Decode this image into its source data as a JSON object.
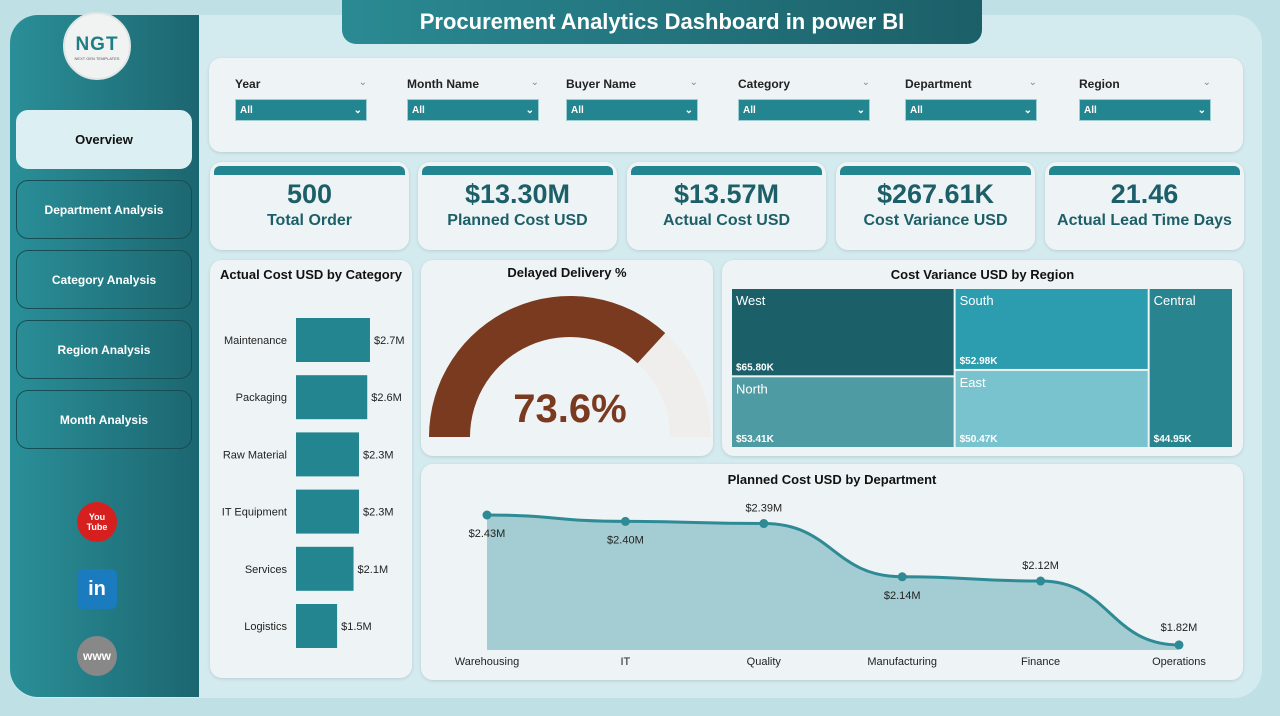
{
  "title": "Procurement Analytics Dashboard in power BI",
  "logo": {
    "text": "NGT",
    "sub": "NEXT GEN TEMPLATES"
  },
  "nav": [
    {
      "label": "Overview",
      "active": true
    },
    {
      "label": "Department Analysis"
    },
    {
      "label": "Category Analysis"
    },
    {
      "label": "Region Analysis"
    },
    {
      "label": "Month Analysis"
    }
  ],
  "social": [
    {
      "icon": "youtube-icon",
      "label": "You Tube",
      "color": "#d62020"
    },
    {
      "icon": "linkedin-icon",
      "label": "in",
      "color": "#1a7bbf"
    },
    {
      "icon": "globe-icon",
      "label": "www",
      "color": "#888888"
    }
  ],
  "filters": [
    {
      "label": "Year",
      "value": "All"
    },
    {
      "label": "Month Name",
      "value": "All"
    },
    {
      "label": "Buyer Name",
      "value": "All"
    },
    {
      "label": "Category",
      "value": "All"
    },
    {
      "label": "Department",
      "value": "All"
    },
    {
      "label": "Region",
      "value": "All"
    }
  ],
  "kpis": [
    {
      "value": "500",
      "label": "Total Order"
    },
    {
      "value": "$13.30M",
      "label": "Planned Cost USD"
    },
    {
      "value": "$13.57M",
      "label": "Actual Cost USD"
    },
    {
      "value": "$267.61K",
      "label": "Cost Variance USD"
    },
    {
      "value": "21.46",
      "label": "Actual Lead Time Days"
    }
  ],
  "colors": {
    "accent": "#238590",
    "gauge": "#7a3a1f"
  },
  "chart_data": [
    {
      "type": "bar",
      "orientation": "horizontal",
      "title": "Actual Cost USD by Category",
      "categories": [
        "Maintenance",
        "Packaging",
        "Raw Material",
        "IT Equipment",
        "Services",
        "Logistics"
      ],
      "values": [
        2.7,
        2.6,
        2.3,
        2.3,
        2.1,
        1.5
      ],
      "labels": [
        "$2.7M",
        "$2.6M",
        "$2.3M",
        "$2.3M",
        "$2.1M",
        "$1.5M"
      ]
    },
    {
      "type": "gauge",
      "title": "Delayed Delivery %",
      "value": 73.6,
      "label": "73.6%",
      "range": [
        0,
        100
      ]
    },
    {
      "type": "treemap",
      "title": "Cost Variance USD by Region",
      "items": [
        {
          "name": "West",
          "value": 65.8,
          "label": "$65.80K",
          "color": "#1b5f69"
        },
        {
          "name": "North",
          "value": 53.41,
          "label": "$53.41K",
          "color": "#4f9ba4"
        },
        {
          "name": "South",
          "value": 52.98,
          "label": "$52.98K",
          "color": "#2b9dae"
        },
        {
          "name": "East",
          "value": 50.47,
          "label": "$50.47K",
          "color": "#79c3cf"
        },
        {
          "name": "Central",
          "value": 44.95,
          "label": "$44.95K",
          "color": "#288590"
        }
      ]
    },
    {
      "type": "area",
      "title": "Planned Cost USD by Department",
      "categories": [
        "Warehousing",
        "IT",
        "Quality",
        "Manufacturing",
        "Finance",
        "Operations"
      ],
      "values": [
        2.43,
        2.4,
        2.39,
        2.14,
        2.12,
        1.82
      ],
      "labels": [
        "$2.43M",
        "$2.40M",
        "$2.39M",
        "$2.14M",
        "$2.12M",
        "$1.82M"
      ]
    }
  ]
}
